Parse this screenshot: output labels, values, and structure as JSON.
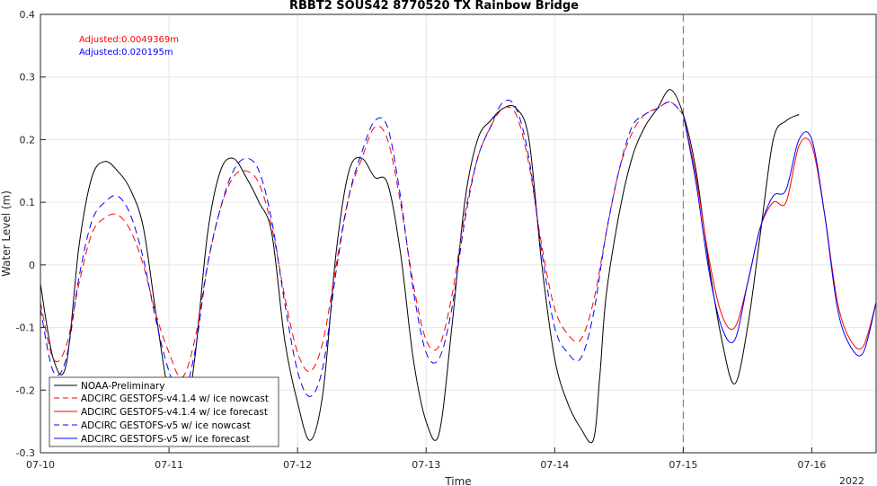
{
  "chart_data": {
    "type": "line",
    "title": "RBBT2 SOUS42 8770520 TX Rainbow Bridge",
    "xlabel": "Time",
    "ylabel": "Water Level (m)",
    "xlim": [
      0,
      6.5
    ],
    "ylim": [
      -0.3,
      0.4
    ],
    "x_ticks": [
      {
        "value": 0,
        "label": "07-10"
      },
      {
        "value": 1,
        "label": "07-11"
      },
      {
        "value": 2,
        "label": "07-12"
      },
      {
        "value": 3,
        "label": "07-13"
      },
      {
        "value": 4,
        "label": "07-14"
      },
      {
        "value": 5,
        "label": "07-15"
      },
      {
        "value": 6,
        "label": "07-16"
      }
    ],
    "x_corner_label": "2022",
    "y_ticks": [
      {
        "value": -0.3,
        "label": "-0.3"
      },
      {
        "value": -0.2,
        "label": "-0.2"
      },
      {
        "value": -0.1,
        "label": "-0.1"
      },
      {
        "value": 0,
        "label": "0"
      },
      {
        "value": 0.1,
        "label": "0.1"
      },
      {
        "value": 0.2,
        "label": "0.2"
      },
      {
        "value": 0.3,
        "label": "0.3"
      },
      {
        "value": 0.4,
        "label": "0.4"
      }
    ],
    "grid": true,
    "vertical_marker_x": 5,
    "annotations": [
      {
        "text": "Adjusted:0.0049369m",
        "color": "#ff0000"
      },
      {
        "text": "Adjusted:0.020195m",
        "color": "#0000ff"
      }
    ],
    "legend_position": "bottom-left",
    "series": [
      {
        "name": "NOAA-Preliminary",
        "color": "#000000",
        "dash": "solid",
        "x": [
          0,
          0.1,
          0.2,
          0.3,
          0.4,
          0.5,
          0.6,
          0.7,
          0.8,
          0.9,
          1.0,
          1.1,
          1.2,
          1.3,
          1.4,
          1.5,
          1.6,
          1.7,
          1.8,
          1.9,
          2.0,
          2.1,
          2.2,
          2.3,
          2.4,
          2.5,
          2.6,
          2.7,
          2.8,
          2.9,
          3.0,
          3.1,
          3.2,
          3.3,
          3.4,
          3.5,
          3.6,
          3.7,
          3.8,
          3.9,
          4.0,
          4.1,
          4.2,
          4.3,
          4.35,
          4.4,
          4.5,
          4.6,
          4.7,
          4.8,
          4.9,
          5.0,
          5.1,
          5.2,
          5.3,
          5.4,
          5.5,
          5.6,
          5.7,
          5.8,
          5.9
        ],
        "y": [
          -0.03,
          -0.15,
          -0.16,
          0.03,
          0.14,
          0.165,
          0.15,
          0.12,
          0.06,
          -0.08,
          -0.21,
          -0.27,
          -0.15,
          0.05,
          0.15,
          0.17,
          0.14,
          0.1,
          0.05,
          -0.12,
          -0.22,
          -0.28,
          -0.2,
          0.02,
          0.15,
          0.17,
          0.14,
          0.13,
          0.02,
          -0.15,
          -0.25,
          -0.27,
          -0.1,
          0.1,
          0.2,
          0.23,
          0.25,
          0.25,
          0.2,
          0.0,
          -0.15,
          -0.22,
          -0.26,
          -0.28,
          -0.18,
          -0.05,
          0.08,
          0.17,
          0.22,
          0.25,
          0.28,
          0.24,
          0.15,
          0.0,
          -0.12,
          -0.19,
          -0.1,
          0.05,
          0.2,
          0.23,
          0.24
        ]
      },
      {
        "name": "ADCIRC GESTOFS-v4.1.4 w/ ice nowcast",
        "color": "#ff0000",
        "dash": "dash",
        "x": [
          0,
          0.1,
          0.2,
          0.3,
          0.4,
          0.5,
          0.6,
          0.7,
          0.8,
          0.9,
          1.0,
          1.1,
          1.2,
          1.3,
          1.4,
          1.5,
          1.6,
          1.7,
          1.8,
          1.9,
          2.0,
          2.1,
          2.2,
          2.3,
          2.4,
          2.5,
          2.6,
          2.7,
          2.8,
          2.9,
          3.0,
          3.1,
          3.2,
          3.3,
          3.4,
          3.5,
          3.6,
          3.7,
          3.8,
          3.9,
          4.0,
          4.1,
          4.2,
          4.3,
          4.4,
          4.5,
          4.6,
          4.7,
          4.8,
          4.9,
          5.0
        ],
        "y": [
          -0.06,
          -0.15,
          -0.13,
          -0.03,
          0.05,
          0.075,
          0.08,
          0.055,
          0.0,
          -0.08,
          -0.14,
          -0.18,
          -0.12,
          0.0,
          0.09,
          0.14,
          0.15,
          0.13,
          0.06,
          -0.05,
          -0.14,
          -0.17,
          -0.12,
          0.0,
          0.11,
          0.17,
          0.22,
          0.2,
          0.1,
          -0.03,
          -0.12,
          -0.13,
          -0.05,
          0.08,
          0.17,
          0.22,
          0.25,
          0.24,
          0.16,
          0.03,
          -0.07,
          -0.11,
          -0.12,
          -0.06,
          0.05,
          0.15,
          0.21,
          0.24,
          0.25,
          0.26,
          0.24
        ]
      },
      {
        "name": "ADCIRC GESTOFS-v4.1.4 w/ ice forecast",
        "color": "#ff0000",
        "dash": "solid",
        "x": [
          5.0,
          5.1,
          5.2,
          5.3,
          5.4,
          5.5,
          5.6,
          5.7,
          5.8,
          5.9,
          6.0,
          6.1,
          6.2,
          6.3,
          6.4,
          6.5
        ],
        "y": [
          0.24,
          0.14,
          0.01,
          -0.08,
          -0.1,
          -0.03,
          0.06,
          0.1,
          0.1,
          0.19,
          0.19,
          0.08,
          -0.06,
          -0.12,
          -0.13,
          -0.06
        ]
      },
      {
        "name": "ADCIRC GESTOFS-v5 w/ ice nowcast",
        "color": "#0000ff",
        "dash": "dash",
        "x": [
          0,
          0.1,
          0.2,
          0.3,
          0.4,
          0.5,
          0.6,
          0.7,
          0.8,
          0.9,
          1.0,
          1.1,
          1.2,
          1.3,
          1.4,
          1.5,
          1.6,
          1.7,
          1.8,
          1.9,
          2.0,
          2.1,
          2.2,
          2.3,
          2.4,
          2.5,
          2.6,
          2.7,
          2.8,
          2.9,
          3.0,
          3.1,
          3.2,
          3.3,
          3.4,
          3.5,
          3.6,
          3.7,
          3.8,
          3.9,
          4.0,
          4.1,
          4.2,
          4.3,
          4.4,
          4.5,
          4.6,
          4.7,
          4.8,
          4.9,
          5.0
        ],
        "y": [
          -0.07,
          -0.17,
          -0.15,
          -0.02,
          0.07,
          0.1,
          0.11,
          0.08,
          0.01,
          -0.09,
          -0.17,
          -0.21,
          -0.14,
          0.0,
          0.09,
          0.15,
          0.17,
          0.15,
          0.07,
          -0.06,
          -0.17,
          -0.21,
          -0.16,
          -0.01,
          0.11,
          0.18,
          0.23,
          0.22,
          0.11,
          -0.04,
          -0.14,
          -0.15,
          -0.07,
          0.07,
          0.17,
          0.22,
          0.26,
          0.25,
          0.17,
          0.02,
          -0.1,
          -0.14,
          -0.15,
          -0.08,
          0.05,
          0.15,
          0.22,
          0.24,
          0.25,
          0.26,
          0.24
        ]
      },
      {
        "name": "ADCIRC GESTOFS-v5 w/ ice forecast",
        "color": "#0000ff",
        "dash": "solid",
        "x": [
          5.0,
          5.1,
          5.2,
          5.3,
          5.4,
          5.5,
          5.6,
          5.7,
          5.8,
          5.9,
          6.0,
          6.1,
          6.2,
          6.3,
          6.4,
          6.5
        ],
        "y": [
          0.24,
          0.13,
          -0.01,
          -0.1,
          -0.12,
          -0.03,
          0.06,
          0.11,
          0.12,
          0.2,
          0.2,
          0.08,
          -0.07,
          -0.13,
          -0.14,
          -0.06
        ]
      }
    ]
  }
}
